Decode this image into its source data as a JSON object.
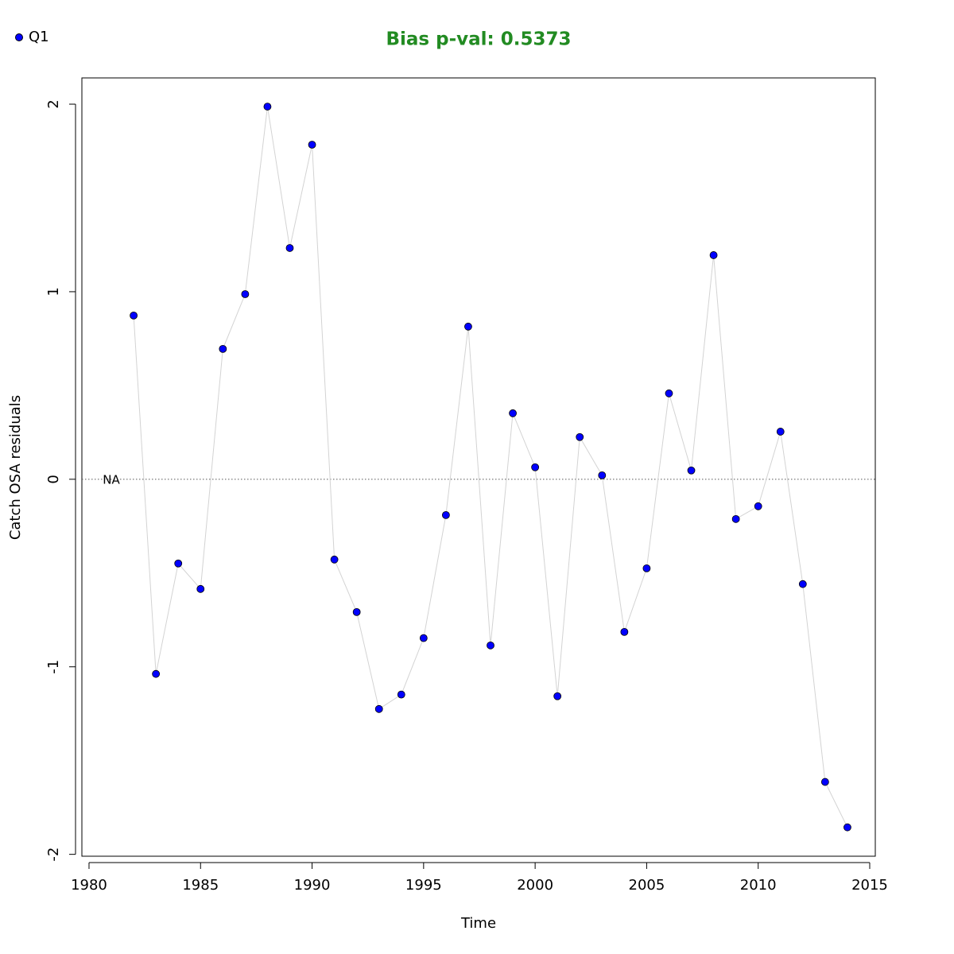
{
  "chart_data": {
    "type": "scatter",
    "title": "Bias p-val: 0.5373",
    "title_color": "#228b22",
    "x_label": "Time",
    "y_label": "Catch OSA residuals",
    "annotation": "NA",
    "hline": 0,
    "x": [
      1982,
      1983,
      1984,
      1985,
      1986,
      1987,
      1988,
      1989,
      1990,
      1991,
      1992,
      1993,
      1994,
      1995,
      1996,
      1997,
      1998,
      1999,
      2000,
      2001,
      2002,
      2003,
      2004,
      2005,
      2006,
      2007,
      2008,
      2009,
      2010,
      2011,
      2012,
      2013,
      2014
    ],
    "series": [
      {
        "name": "Q1",
        "color": "#0000ff",
        "line_color": "#d3d3d3",
        "values": [
          0.873,
          -1.038,
          -0.449,
          -0.585,
          0.695,
          0.987,
          1.987,
          1.233,
          1.784,
          -0.428,
          -0.708,
          -1.225,
          -1.148,
          -0.847,
          -0.191,
          0.814,
          -0.886,
          0.352,
          0.064,
          -1.157,
          0.225,
          0.021,
          -0.814,
          -0.475,
          0.458,
          0.047,
          1.195,
          -0.212,
          -0.144,
          0.254,
          -0.559,
          -1.614,
          -1.856
        ]
      }
    ],
    "xlim": [
      1979.68,
      2015.25
    ],
    "ylim": [
      -2.01,
      2.14
    ],
    "xticks": [
      1980,
      1985,
      1990,
      1995,
      2000,
      2005,
      2010,
      2015
    ],
    "yticks": [
      -2,
      -1,
      0,
      1,
      2
    ]
  }
}
